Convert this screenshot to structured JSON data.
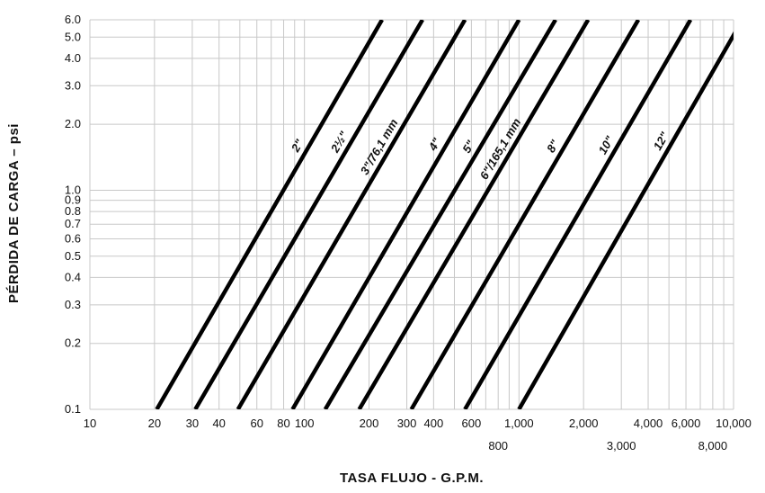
{
  "chart_data": {
    "type": "line",
    "xscale": "log",
    "yscale": "log",
    "xlim": [
      10,
      10000
    ],
    "ylim": [
      0.1,
      6.0
    ],
    "grid": true,
    "xlabel": "TASA FLUJO - G.P.M.",
    "ylabel": "PÉRDIDA DE CARGA – psi",
    "x_ticks": [
      {
        "value": 10,
        "label": "10",
        "row": 1
      },
      {
        "value": 20,
        "label": "20",
        "row": 1
      },
      {
        "value": 30,
        "label": "30",
        "row": 1
      },
      {
        "value": 40,
        "label": "40",
        "row": 1
      },
      {
        "value": 60,
        "label": "60",
        "row": 1
      },
      {
        "value": 80,
        "label": "80",
        "row": 1
      },
      {
        "value": 100,
        "label": "100",
        "row": 1
      },
      {
        "value": 200,
        "label": "200",
        "row": 1
      },
      {
        "value": 300,
        "label": "300",
        "row": 1
      },
      {
        "value": 400,
        "label": "400",
        "row": 1
      },
      {
        "value": 600,
        "label": "600",
        "row": 1
      },
      {
        "value": 800,
        "label": "800",
        "row": 2
      },
      {
        "value": 1000,
        "label": "1,000",
        "row": 1
      },
      {
        "value": 2000,
        "label": "2,000",
        "row": 1
      },
      {
        "value": 3000,
        "label": "3,000",
        "row": 2
      },
      {
        "value": 4000,
        "label": "4,000",
        "row": 1
      },
      {
        "value": 6000,
        "label": "6,000",
        "row": 1
      },
      {
        "value": 8000,
        "label": "8,000",
        "row": 2
      },
      {
        "value": 10000,
        "label": "10,000",
        "row": 1
      }
    ],
    "x_gridlines": [
      10,
      20,
      30,
      40,
      50,
      60,
      70,
      80,
      90,
      100,
      200,
      300,
      400,
      500,
      600,
      700,
      800,
      900,
      1000,
      2000,
      3000,
      4000,
      5000,
      6000,
      7000,
      8000,
      9000,
      10000
    ],
    "y_ticks": [
      {
        "value": 0.1,
        "label": "0.1"
      },
      {
        "value": 0.2,
        "label": "0.2"
      },
      {
        "value": 0.3,
        "label": "0.3"
      },
      {
        "value": 0.4,
        "label": "0.4"
      },
      {
        "value": 0.5,
        "label": "0.5"
      },
      {
        "value": 0.6,
        "label": "0.6"
      },
      {
        "value": 0.7,
        "label": "0.7"
      },
      {
        "value": 0.8,
        "label": "0.8"
      },
      {
        "value": 0.9,
        "label": "0.9"
      },
      {
        "value": 1.0,
        "label": "1.0"
      },
      {
        "value": 2.0,
        "label": "2.0"
      },
      {
        "value": 3.0,
        "label": "3.0"
      },
      {
        "value": 4.0,
        "label": "4.0"
      },
      {
        "value": 5.0,
        "label": "5.0"
      },
      {
        "value": 6.0,
        "label": "6.0"
      }
    ],
    "series": [
      {
        "name": "2\"",
        "x": [
          20.5,
          230
        ],
        "y": [
          0.1,
          6.0
        ],
        "label_at": 102
      },
      {
        "name": "2½\"",
        "x": [
          31,
          355
        ],
        "y": [
          0.1,
          6.0
        ],
        "label_at": 160
      },
      {
        "name": "3\"/76,1 mm",
        "x": [
          49,
          560
        ],
        "y": [
          0.1,
          6.0
        ],
        "label_at": 245
      },
      {
        "name": "4\"",
        "x": [
          88,
          1000
        ],
        "y": [
          0.1,
          6.0
        ],
        "label_at": 445
      },
      {
        "name": "5\"",
        "x": [
          125,
          1480
        ],
        "y": [
          0.1,
          6.0
        ],
        "label_at": 640
      },
      {
        "name": "6\"/165,1 mm",
        "x": [
          180,
          2100
        ],
        "y": [
          0.1,
          6.0
        ],
        "label_at": 900
      },
      {
        "name": "8\"",
        "x": [
          315,
          3600
        ],
        "y": [
          0.1,
          6.0
        ],
        "label_at": 1580
      },
      {
        "name": "10\"",
        "x": [
          560,
          6300
        ],
        "y": [
          0.1,
          6.0
        ],
        "label_at": 2800
      },
      {
        "name": "12\"",
        "x": [
          1000,
          11000
        ],
        "y": [
          0.1,
          6.0
        ],
        "label_at": 5050
      }
    ],
    "series_color": "#000000",
    "grid_color": "#c8c8c8"
  }
}
